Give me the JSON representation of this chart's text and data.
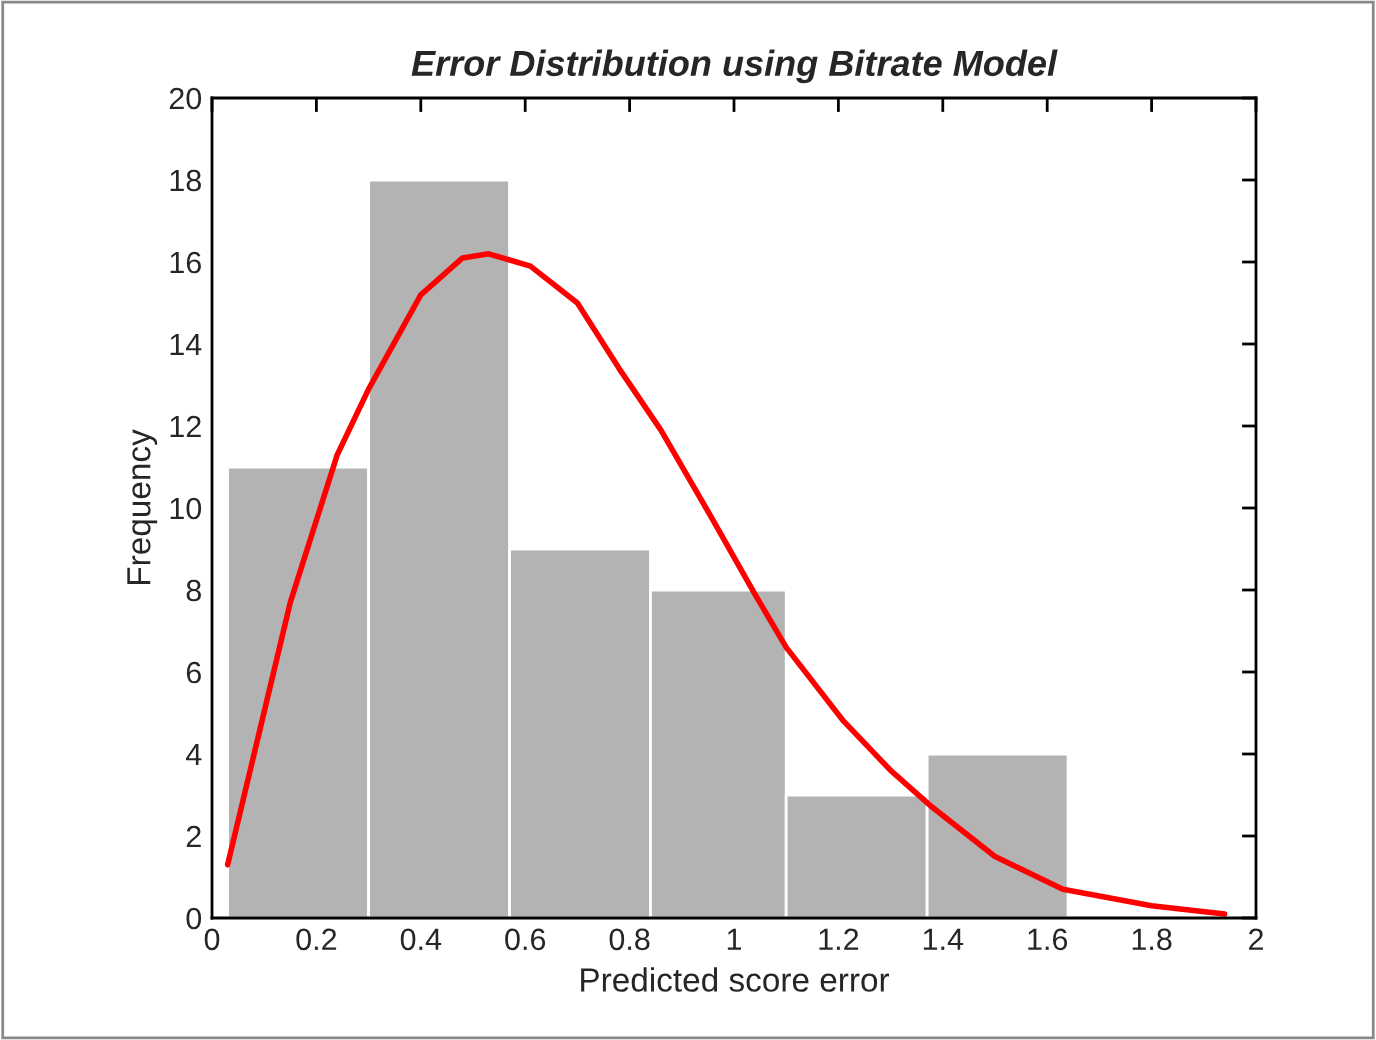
{
  "chart_data": {
    "type": "histogram",
    "title": "Error Distribution using Bitrate Model",
    "xlabel": "Predicted score error",
    "ylabel": "Frequency",
    "bins": [
      0.03,
      0.3,
      0.57,
      0.84,
      1.1,
      1.37,
      1.64
    ],
    "values": [
      11,
      18,
      9,
      8,
      3,
      4
    ],
    "color": "#b3b3b3",
    "series": [
      {
        "type": "line",
        "color": "#ff0000",
        "x": [
          0.03,
          0.09,
          0.15,
          0.24,
          0.3,
          0.4,
          0.48,
          0.53,
          0.61,
          0.7,
          0.78,
          0.86,
          0.96,
          1.04,
          1.1,
          1.21,
          1.3,
          1.38,
          1.5,
          1.63,
          1.8,
          1.94
        ],
        "values": [
          1.3,
          4.5,
          7.7,
          11.3,
          12.9,
          15.2,
          16.1,
          16.2,
          15.9,
          15.0,
          13.4,
          11.9,
          9.7,
          7.9,
          6.6,
          4.8,
          3.6,
          2.7,
          1.5,
          0.7,
          0.3,
          0.1
        ]
      }
    ],
    "xlim": [
      0,
      2
    ],
    "xticks": [
      0,
      0.2,
      0.4,
      0.6,
      0.8,
      1,
      1.2,
      1.4,
      1.6,
      1.8,
      2
    ],
    "ylim": [
      0,
      20
    ],
    "yticks": [
      0,
      2,
      4,
      6,
      8,
      10,
      12,
      14,
      16,
      18,
      20
    ],
    "grid": false,
    "legend": false
  }
}
